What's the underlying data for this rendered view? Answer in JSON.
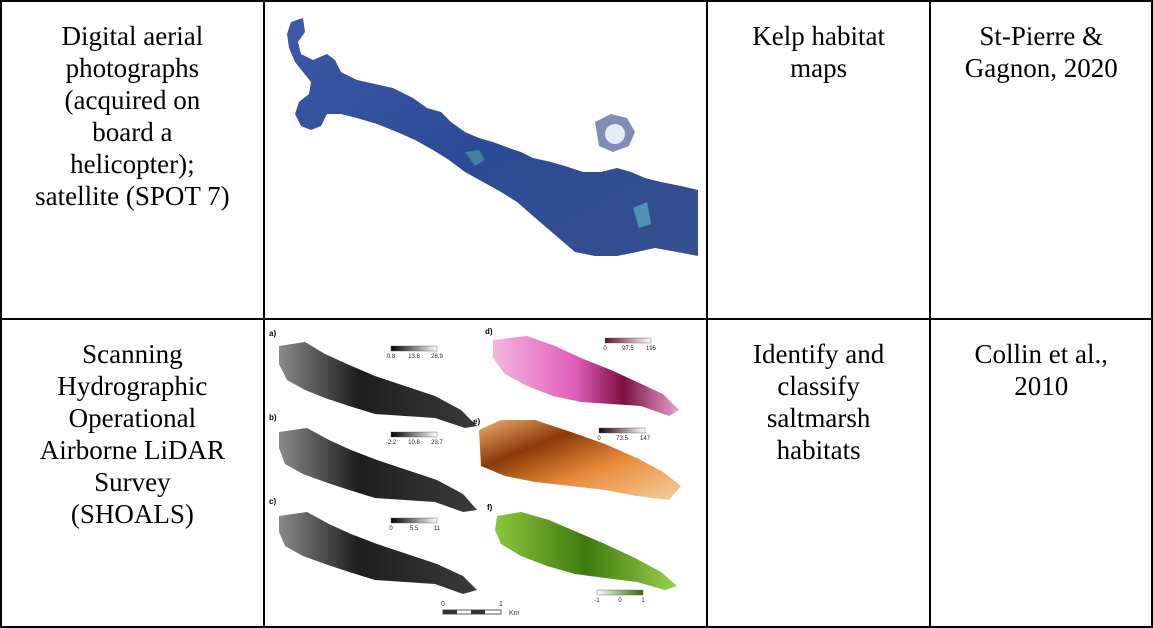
{
  "rows": [
    {
      "method_lines": [
        "Digital aerial",
        "photographs",
        "(acquired on",
        "board a",
        "helicopter);",
        "satellite (SPOT 7)"
      ],
      "application_lines": [
        "Kelp habitat",
        "maps"
      ],
      "reference_lines": [
        "St-Pierre &",
        "Gagnon, 2020"
      ],
      "image_desc": "aerial-kelp-map"
    },
    {
      "method_lines": [
        "Scanning",
        "Hydrographic",
        "Operational",
        "Airborne LiDAR",
        "Survey",
        "(SHOALS)"
      ],
      "application_lines": [
        "Identify and",
        "classify",
        "saltmarsh",
        "habitats"
      ],
      "reference_lines": [
        "Collin et al.,",
        "2010"
      ],
      "figure": {
        "panels": [
          {
            "label": "a)",
            "ticks": [
              "0.8",
              "13.8",
              "26.9"
            ],
            "colors": [
              "#000000",
              "#ffffff"
            ]
          },
          {
            "label": "b)",
            "ticks": [
              "-2.2",
              "10.8",
              "23.7"
            ],
            "colors": [
              "#000000",
              "#ffffff"
            ]
          },
          {
            "label": "c)",
            "ticks": [
              "0",
              "5.5",
              "11"
            ],
            "colors": [
              "#000000",
              "#ffffff"
            ]
          },
          {
            "label": "d)",
            "ticks": [
              "0",
              "97.5",
              "195"
            ],
            "colors": [
              "#6b0a2e",
              "#ffffff"
            ]
          },
          {
            "label": "e)",
            "ticks": [
              "0",
              "73.5",
              "147"
            ],
            "colors": [
              "#1a0500",
              "#ffffff"
            ]
          },
          {
            "label": "f)",
            "ticks": [
              "-1",
              "0",
              "1"
            ],
            "colors": [
              "#ffffff",
              "#2f6e00"
            ]
          }
        ],
        "scale_ticks": [
          "0",
          "1"
        ],
        "scale_unit": "Km"
      }
    }
  ]
}
